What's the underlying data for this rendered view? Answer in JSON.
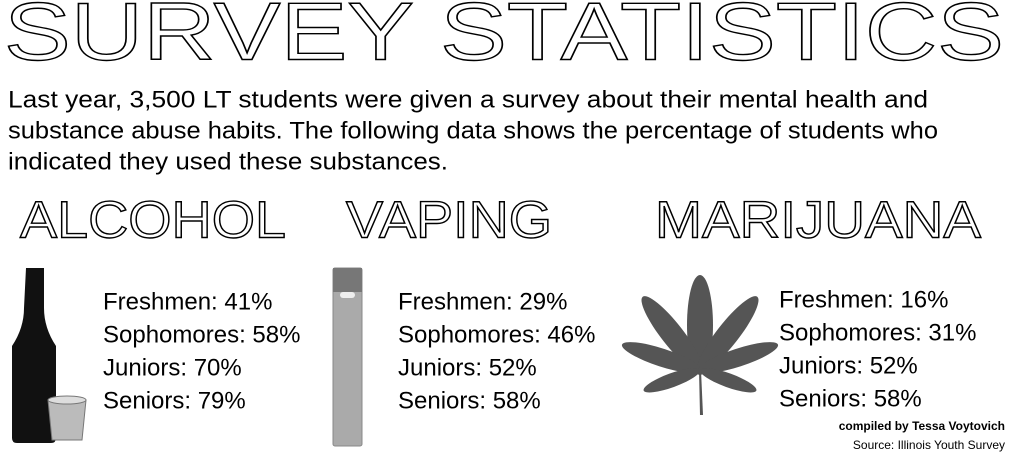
{
  "title": "SURVEY STATISTICS",
  "intro": [
    "Last year, 3,500 LT students were given a survey about their mental health and",
    "substance abuse habits. The following data shows the percentage of students who",
    "indicated they used these substances."
  ],
  "sections": [
    {
      "heading": "ALCOHOL",
      "lines": [
        "Freshmen: 41%",
        "Sophomores: 58%",
        "Juniors: 70%",
        "Seniors: 79%"
      ]
    },
    {
      "heading": "VAPING",
      "lines": [
        "Freshmen: 29%",
        "Sophomores: 46%",
        "Juniors: 52%",
        "Seniors: 58%"
      ]
    },
    {
      "heading": "MARIJUANA",
      "lines": [
        "Freshmen: 16%",
        "Sophomores: 31%",
        "Juniors: 52%",
        "Seniors: 58%"
      ]
    }
  ],
  "credit": "compiled by Tessa Voytovich",
  "source": "Source: Illinois Youth Survey"
}
